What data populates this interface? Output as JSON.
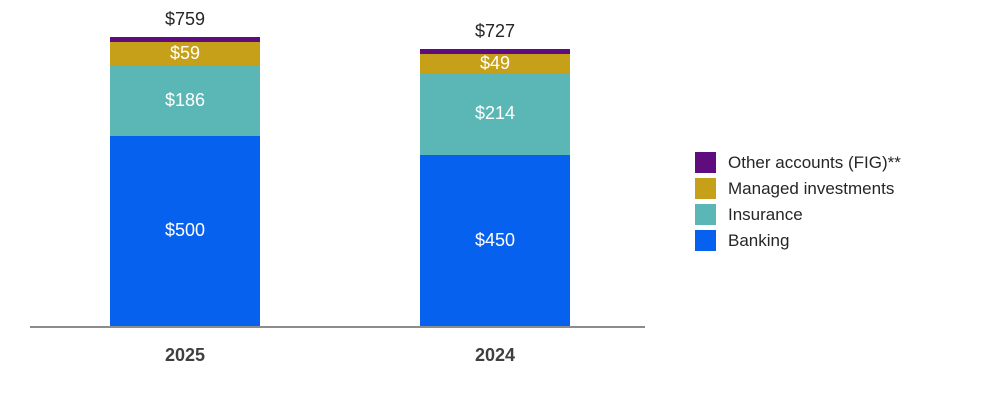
{
  "chart_data": {
    "type": "bar",
    "variant": "stacked",
    "categories": [
      "2025",
      "2024"
    ],
    "series": [
      {
        "name": "Banking",
        "color": "#0761ef",
        "values": [
          500,
          450
        ],
        "labels": [
          "$500",
          "$450"
        ]
      },
      {
        "name": "Insurance",
        "color": "#5bb7b5",
        "values": [
          186,
          214
        ],
        "labels": [
          "$186",
          "$214"
        ]
      },
      {
        "name": "Managed investments",
        "color": "#c6a018",
        "values": [
          59,
          49
        ],
        "labels": [
          "$59",
          "$49"
        ]
      },
      {
        "name": "Other accounts (FIG)**",
        "color": "#5e0c7e",
        "values": [
          14,
          14
        ],
        "labels": [
          "",
          ""
        ]
      }
    ],
    "totals": [
      "$759",
      "$727"
    ],
    "legend": [
      {
        "label": "Other accounts (FIG)**",
        "color": "#5e0c7e"
      },
      {
        "label": "Managed investments",
        "color": "#c6a018"
      },
      {
        "label": "Insurance",
        "color": "#5bb7b5"
      },
      {
        "label": "Banking",
        "color": "#0761ef"
      }
    ],
    "title": "",
    "xlabel": "",
    "ylabel": "",
    "ylim": [
      0,
      800
    ],
    "grid": false,
    "legend_position": "right"
  }
}
